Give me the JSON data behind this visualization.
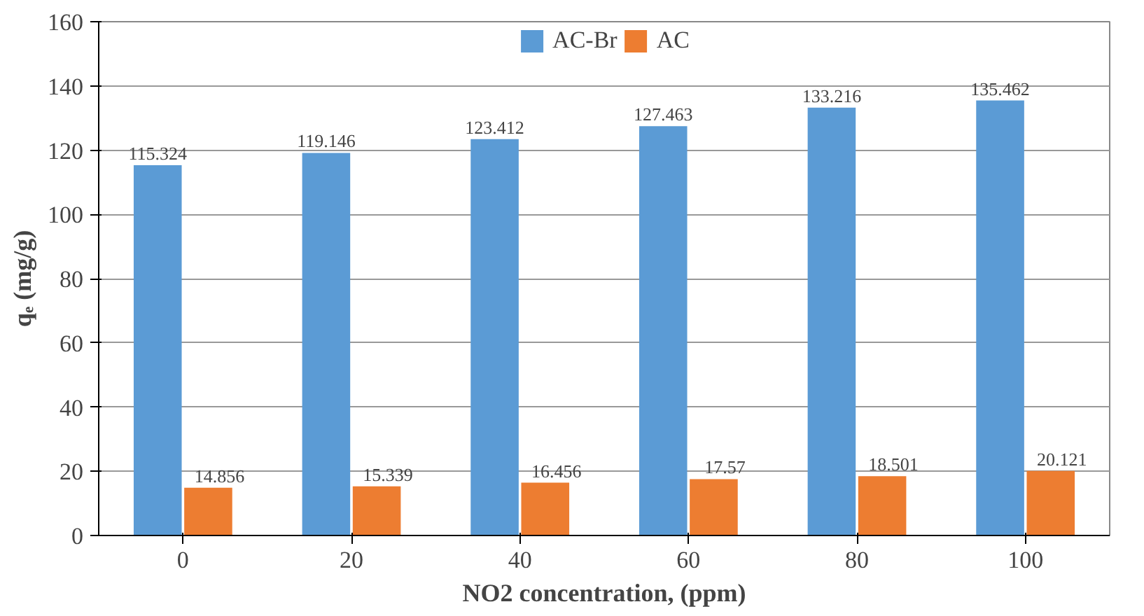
{
  "chart_data": {
    "type": "bar",
    "xlabel": "NO2 concentration, (ppm)",
    "ylabel": "qₑ (mg/g)",
    "categories": [
      "0",
      "20",
      "40",
      "60",
      "80",
      "100"
    ],
    "series": [
      {
        "name": "AC-Br",
        "color": "#5b9bd5",
        "values": [
          115.324,
          119.146,
          123.412,
          127.463,
          133.216,
          135.462
        ]
      },
      {
        "name": "AC",
        "color": "#ed7d31",
        "values": [
          14.856,
          15.339,
          16.456,
          17.57,
          18.501,
          20.121
        ]
      }
    ],
    "ylim": [
      0,
      160
    ],
    "yticks": [
      0,
      20,
      40,
      60,
      80,
      100,
      120,
      140,
      160
    ],
    "grid": "y",
    "legend": "top",
    "data_labels": true
  }
}
